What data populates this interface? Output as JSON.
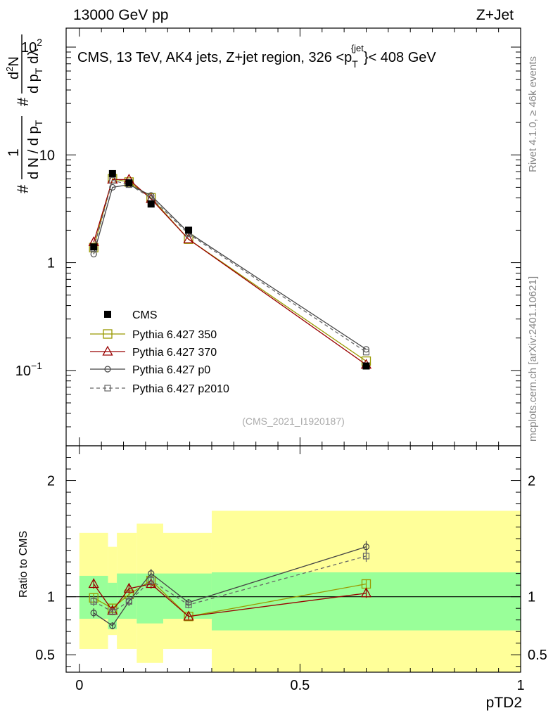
{
  "header": {
    "left": "13000 GeV pp",
    "right": "Z+Jet"
  },
  "side_labels": {
    "rivet": "Rivet 4.1.0, ≥ 46k events",
    "mcplots": "mcplots.cern.ch [arXiv:2401.10621]"
  },
  "colors": {
    "cms": "#000000",
    "p350": "#999900",
    "p370": "#990000",
    "p0": "#444444",
    "p2010": "#666666",
    "band_inner": "#99ff99",
    "band_outer": "#ffff99"
  },
  "chart_data": [
    {
      "type": "line",
      "panel": "main",
      "title": "CMS, 13 TeV, AK4 jets, Z+jet region, 326 <p_T^{jet}< 408 GeV",
      "title_parts": {
        "pre": "CMS, 13 TeV, AK4 jets, Z+jet region, 326 <p",
        "sub": "T",
        "sup": "{jet",
        "post": "}< 408 GeV"
      },
      "ylabel_parts": {
        "hash1": "#",
        "one": "1",
        "denom": "d N / d p",
        "T": "T",
        "hash2": "#",
        "d2N": "d",
        "sq": "2",
        "N": "N",
        "dpT": "d p",
        "dlambda": "dλ"
      },
      "analysis_id": "(CMS_2021_I1920187)",
      "yscale": "log",
      "ylim": [
        0.02,
        150
      ],
      "xlim": [
        -0.03,
        1.0
      ],
      "yticks": [
        {
          "value": 100,
          "label": "10",
          "sup": "2"
        },
        {
          "value": 10,
          "label": "10",
          "sup": ""
        },
        {
          "value": 1,
          "label": "1",
          "sup": ""
        },
        {
          "value": 0.1,
          "label": "10",
          "sup": "−1"
        }
      ],
      "legend_position": "center-left",
      "series": [
        {
          "name": "CMS",
          "marker": "filled-square",
          "x": [
            0.0325,
            0.075,
            0.1125,
            0.1625,
            0.2475,
            0.65
          ],
          "values": [
            1.4,
            6.7,
            5.5,
            3.5,
            2.0,
            0.11
          ],
          "errors": [
            0.05,
            0.2,
            0.15,
            0.1,
            0.06,
            0.005
          ]
        },
        {
          "name": "Pythia 6.427 350",
          "marker": "open-square",
          "dash": false,
          "x": [
            0.0325,
            0.075,
            0.1125,
            0.1625,
            0.2475,
            0.65
          ],
          "values": [
            1.38,
            6.0,
            5.6,
            4.0,
            1.65,
            0.122
          ]
        },
        {
          "name": "Pythia 6.427 370",
          "marker": "open-triangle",
          "dash": false,
          "x": [
            0.0325,
            0.075,
            0.1125,
            0.1625,
            0.2475,
            0.65
          ],
          "values": [
            1.55,
            5.9,
            5.9,
            3.9,
            1.65,
            0.113
          ]
        },
        {
          "name": "Pythia 6.427 p0",
          "marker": "open-circle",
          "dash": false,
          "x": [
            0.0325,
            0.075,
            0.1125,
            0.1625,
            0.2475,
            0.65
          ],
          "values": [
            1.2,
            5.0,
            5.3,
            4.2,
            1.9,
            0.157
          ]
        },
        {
          "name": "Pythia 6.427 p2010",
          "marker": "open-square-small",
          "dash": true,
          "x": [
            0.0325,
            0.075,
            0.1125,
            0.1625,
            0.2475,
            0.65
          ],
          "values": [
            1.35,
            5.8,
            5.3,
            4.0,
            1.85,
            0.148
          ]
        }
      ]
    },
    {
      "type": "line",
      "panel": "ratio",
      "ylabel": "Ratio to CMS",
      "xlabel": "pTD2",
      "ylim": [
        0.35,
        2.3
      ],
      "xlim": [
        -0.03,
        1.0
      ],
      "yticks": [
        {
          "value": 2,
          "label": "2"
        },
        {
          "value": 1,
          "label": "1"
        },
        {
          "value": 0.5,
          "label": "0.5"
        }
      ],
      "xticks": [
        {
          "value": 0,
          "label": "0"
        },
        {
          "value": 0.5,
          "label": "0.5"
        },
        {
          "value": 1,
          "label": "1"
        }
      ],
      "bands": {
        "edges": [
          0.0,
          0.065,
          0.085,
          0.13,
          0.19,
          0.3,
          1.0
        ],
        "inner_low": [
          0.81,
          0.72,
          0.81,
          0.77,
          0.81,
          0.71
        ],
        "inner_high": [
          1.18,
          1.12,
          1.2,
          1.2,
          1.2,
          1.21
        ],
        "outer_low": [
          0.55,
          0.67,
          0.55,
          0.43,
          0.55,
          0.35
        ],
        "outer_high": [
          1.55,
          1.43,
          1.55,
          1.63,
          1.55,
          1.74
        ]
      },
      "series": [
        {
          "name": "Pythia 6.427 350",
          "x": [
            0.0325,
            0.075,
            0.1125,
            0.1625,
            0.2475,
            0.65
          ],
          "values": [
            0.99,
            0.9,
            1.02,
            1.14,
            0.83,
            1.11
          ],
          "errors": [
            0.04,
            0.04,
            0.04,
            0.04,
            0.03,
            0.04
          ]
        },
        {
          "name": "Pythia 6.427 370",
          "x": [
            0.0325,
            0.075,
            0.1125,
            0.1625,
            0.2475,
            0.65
          ],
          "values": [
            1.11,
            0.88,
            1.07,
            1.11,
            0.83,
            1.03
          ],
          "errors": [
            0.04,
            0.03,
            0.04,
            0.04,
            0.02,
            0.04
          ]
        },
        {
          "name": "Pythia 6.427 p0",
          "x": [
            0.0325,
            0.075,
            0.1125,
            0.1625,
            0.2475,
            0.65
          ],
          "values": [
            0.86,
            0.75,
            0.96,
            1.2,
            0.95,
            1.43
          ],
          "errors": [
            0.04,
            0.03,
            0.04,
            0.04,
            0.03,
            0.05
          ]
        },
        {
          "name": "Pythia 6.427 p2010",
          "x": [
            0.0325,
            0.075,
            0.1125,
            0.1625,
            0.2475,
            0.65
          ],
          "values": [
            0.96,
            0.87,
            0.96,
            1.14,
            0.93,
            1.35
          ],
          "errors": [
            0.04,
            0.03,
            0.04,
            0.04,
            0.03,
            0.05
          ]
        }
      ]
    }
  ]
}
